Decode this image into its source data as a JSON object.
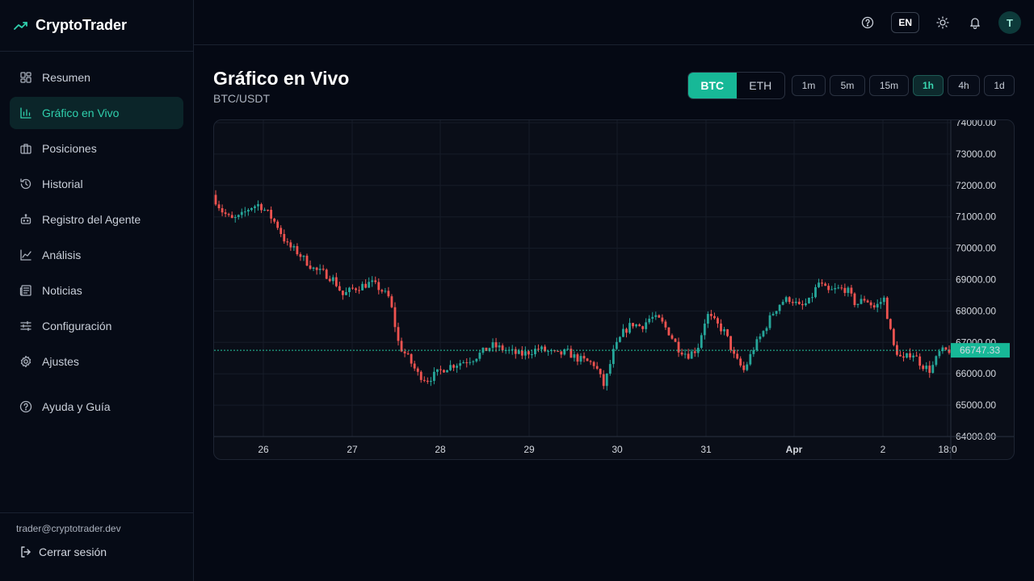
{
  "brand": {
    "name": "CryptoTrader"
  },
  "sidebar": {
    "items": [
      {
        "label": "Resumen",
        "icon": "dashboard-icon",
        "active": false
      },
      {
        "label": "Gráfico en Vivo",
        "icon": "bar-chart-icon",
        "active": true
      },
      {
        "label": "Posiciones",
        "icon": "briefcase-icon",
        "active": false
      },
      {
        "label": "Historial",
        "icon": "history-icon",
        "active": false
      },
      {
        "label": "Registro del Agente",
        "icon": "bot-icon",
        "active": false
      },
      {
        "label": "Análisis",
        "icon": "line-chart-icon",
        "active": false
      },
      {
        "label": "Noticias",
        "icon": "newspaper-icon",
        "active": false
      },
      {
        "label": "Configuración",
        "icon": "sliders-icon",
        "active": false
      },
      {
        "label": "Ajustes",
        "icon": "gear-icon",
        "active": false
      }
    ],
    "help": {
      "label": "Ayuda y Guía",
      "icon": "help-circle-icon"
    },
    "user_email": "trader@cryptotrader.dev",
    "logout_label": "Cerrar sesión"
  },
  "topbar": {
    "language": "EN",
    "avatar_initial": "T"
  },
  "header": {
    "title": "Gráfico en Vivo",
    "pair": "BTC/USDT"
  },
  "assets": {
    "options": [
      "BTC",
      "ETH"
    ],
    "selected": "BTC"
  },
  "timeframes": {
    "options": [
      "1m",
      "5m",
      "15m",
      "1h",
      "4h",
      "1d"
    ],
    "selected": "1h"
  },
  "colors": {
    "accent": "#17b897",
    "up": "#26a69a",
    "down": "#ef5350",
    "background": "#050914"
  },
  "chart_data": {
    "type": "candlestick",
    "y_ticks": [
      "74000.00",
      "73000.00",
      "72000.00",
      "71000.00",
      "70000.00",
      "69000.00",
      "68000.00",
      "67000.00",
      "66000.00",
      "65000.00",
      "64000.00"
    ],
    "x_ticks": [
      "26",
      "27",
      "28",
      "29",
      "30",
      "31",
      "Apr",
      "2",
      "18:0"
    ],
    "ylim": [
      64000,
      74000
    ],
    "last_price": "66747.33",
    "grid": true,
    "close_series": [
      71700,
      71200,
      70900,
      71000,
      71300,
      71400,
      71100,
      70700,
      70100,
      69900,
      69600,
      69300,
      69200,
      69000,
      68500,
      68700,
      68800,
      68900,
      68700,
      68400,
      66900,
      66500,
      66000,
      65800,
      66000,
      66200,
      66300,
      66400,
      66500,
      66700,
      66900,
      66800,
      66700,
      66600,
      66700,
      66800,
      66700,
      66600,
      66700,
      66500,
      66400,
      66300,
      65600,
      66700,
      67300,
      67600,
      67500,
      67800,
      67700,
      67300,
      66800,
      66600,
      66800,
      67900,
      67600,
      67300,
      66500,
      66100,
      66800,
      67300,
      67900,
      68300,
      68400,
      68100,
      68300,
      68900,
      68600,
      68700,
      68700,
      68200,
      68400,
      68100,
      68400,
      66900,
      66400,
      66700,
      66300,
      66100,
      66700,
      66747
    ]
  }
}
